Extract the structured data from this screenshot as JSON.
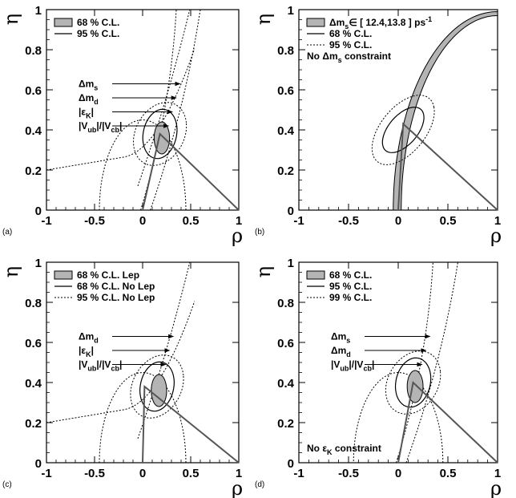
{
  "chart_data": [
    {
      "type": "contour",
      "tag": "(a)",
      "xlabel": "ρ",
      "ylabel": "η",
      "xlim": [
        -1,
        1
      ],
      "ylim": [
        0,
        1
      ],
      "xticks": [
        "-1",
        "-0.5",
        "0",
        "0.5",
        "1"
      ],
      "yticks": [
        "0",
        "0.2",
        "0.4",
        "0.6",
        "0.8",
        "1"
      ],
      "legend": [
        {
          "style": "filled",
          "text": "68 % C.L."
        },
        {
          "style": "solid",
          "text": "95 % C.L."
        }
      ],
      "annotations": [
        {
          "text": "Δm",
          "sub": "s"
        },
        {
          "text": "Δm",
          "sub": "d"
        },
        {
          "text": "|ε",
          "sub": "K",
          "tail": "|"
        },
        {
          "text": "|V",
          "sub": "ub",
          "tail": "|/|V",
          "sub2": "cb",
          "tail2": "|"
        }
      ],
      "apex": [
        0.18,
        0.38
      ],
      "center": [
        0.18,
        0.38
      ]
    },
    {
      "type": "contour",
      "tag": "(b)",
      "xlabel": "ρ",
      "ylabel": "η",
      "xlim": [
        -1,
        1
      ],
      "ylim": [
        0,
        1
      ],
      "xticks": [
        "-1",
        "-0.5",
        "0",
        "0.5",
        "1"
      ],
      "yticks": [
        "0",
        "0.2",
        "0.4",
        "0.6",
        "0.8",
        "1"
      ],
      "legend": [
        {
          "style": "filled",
          "text": "Δm",
          "sub": "s",
          "tail": "∈ [ 12.4,13.8 ] ps",
          "sup": "-1"
        },
        {
          "style": "solid",
          "text": "68 % C.L."
        },
        {
          "style": "dashed",
          "text": "95 % C.L."
        },
        {
          "style": "none",
          "text": "No Δm",
          "sub": "s",
          "tail": " constraint"
        }
      ],
      "apex": [
        0.05,
        0.43
      ],
      "center": [
        0.05,
        0.4
      ]
    },
    {
      "type": "contour",
      "tag": "(c)",
      "xlabel": "ρ",
      "ylabel": "η",
      "xlim": [
        -1,
        1
      ],
      "ylim": [
        0,
        1
      ],
      "xticks": [
        "-1",
        "-0.5",
        "0",
        "0.5",
        "1"
      ],
      "yticks": [
        "0",
        "0.2",
        "0.4",
        "0.6",
        "0.8",
        "1"
      ],
      "legend": [
        {
          "style": "filled",
          "text": "68 % C.L. Lep"
        },
        {
          "style": "solid",
          "text": "68 % C.L. No Lep"
        },
        {
          "style": "dashed",
          "text": "95 % C.L. No Lep"
        }
      ],
      "annotations": [
        {
          "text": "Δm",
          "sub": "d"
        },
        {
          "text": "|ε",
          "sub": "K",
          "tail": "|"
        },
        {
          "text": "|V",
          "sub": "ub",
          "tail": "|/|V",
          "sub2": "cb",
          "tail2": "|"
        }
      ],
      "apex": [
        0.02,
        0.38
      ],
      "center": [
        0.15,
        0.38
      ]
    },
    {
      "type": "contour",
      "tag": "(d)",
      "xlabel": "ρ",
      "ylabel": "η",
      "xlim": [
        -1,
        1
      ],
      "ylim": [
        0,
        1
      ],
      "xticks": [
        "-1",
        "-0.5",
        "0",
        "0.5",
        "1"
      ],
      "yticks": [
        "0",
        "0.2",
        "0.4",
        "0.6",
        "0.8",
        "1"
      ],
      "legend": [
        {
          "style": "filled",
          "text": "68 % C.L."
        },
        {
          "style": "solid",
          "text": "95 % C.L."
        },
        {
          "style": "dashed",
          "text": "99 % C.L."
        }
      ],
      "annotations": [
        {
          "text": "Δm",
          "sub": "s"
        },
        {
          "text": "Δm",
          "sub": "d"
        },
        {
          "text": "|V",
          "sub": "ub",
          "tail": "|/|V",
          "sub2": "cb",
          "tail2": "|"
        }
      ],
      "note": {
        "text": "No ε",
        "sub": "K",
        "tail": " constraint"
      },
      "apex": [
        0.15,
        0.4
      ],
      "center": [
        0.15,
        0.4
      ]
    }
  ]
}
